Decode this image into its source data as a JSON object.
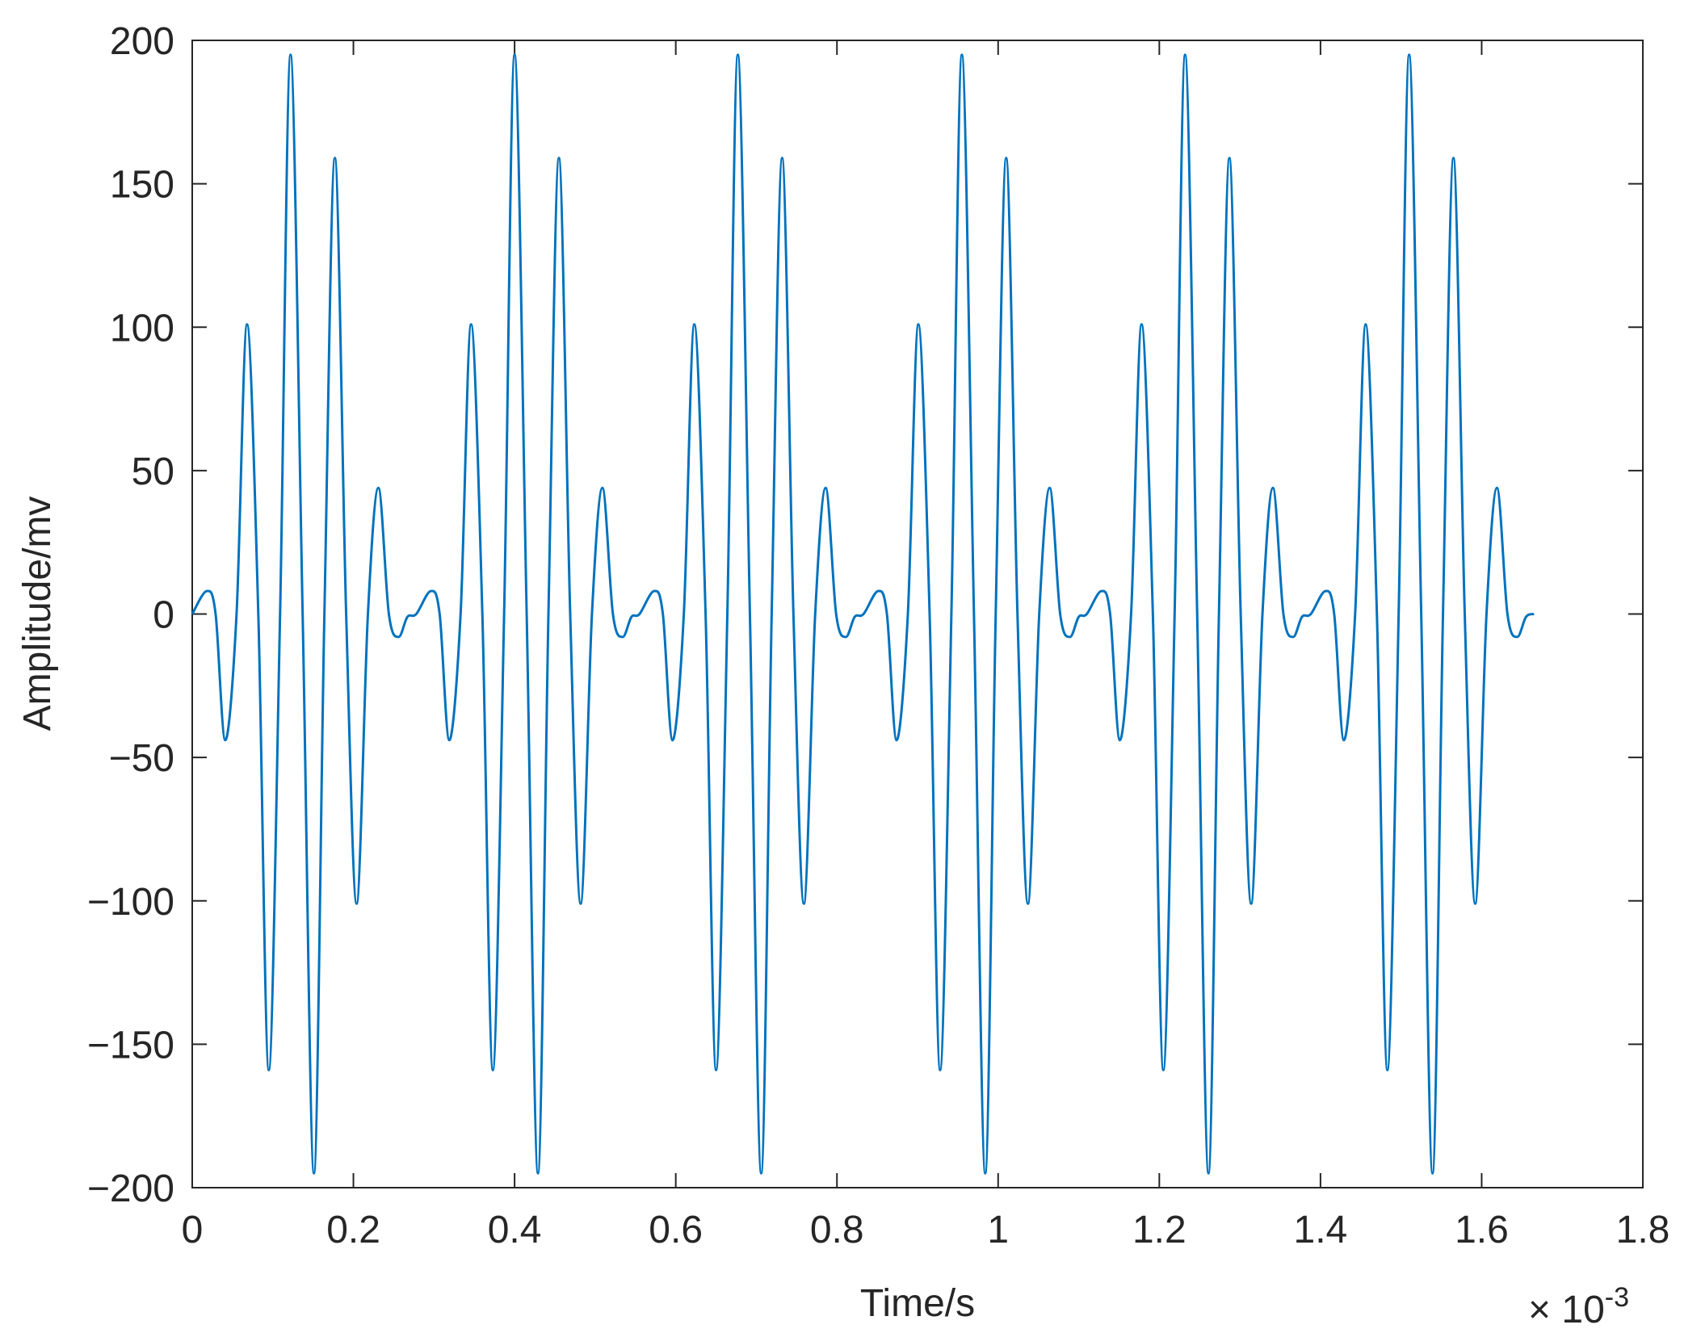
{
  "chart_data": {
    "type": "line",
    "x_label": "Time/s",
    "y_label": "Amplitude/mv",
    "x_multiplier": "× 10",
    "x_exponent": "-3",
    "xlim": [
      0,
      1.8
    ],
    "ylim": [
      -200,
      200
    ],
    "xticks": [
      0,
      0.2,
      0.4,
      0.6,
      0.8,
      1,
      1.2,
      1.4,
      1.6,
      1.8
    ],
    "yticks": [
      {
        "value": -200,
        "label": "−200"
      },
      {
        "value": -150,
        "label": "−150"
      },
      {
        "value": -100,
        "label": "−100"
      },
      {
        "value": -50,
        "label": "−50"
      },
      0,
      50,
      100,
      150,
      200
    ],
    "grid": false,
    "series": [
      {
        "color": "#0072bd",
        "x": [
          0,
          0.018,
          0.029,
          0.041,
          0.055,
          0.068,
          0.082,
          0.095,
          0.109,
          0.122,
          0.137,
          0.151,
          0.164,
          0.177,
          0.191,
          0.204,
          0.218,
          0.231,
          0.244,
          0.256,
          0.267,
          0.278,
          0.296,
          0.307,
          0.319,
          0.333,
          0.346,
          0.36,
          0.373,
          0.387,
          0.4,
          0.415,
          0.429,
          0.442,
          0.455,
          0.469,
          0.482,
          0.496,
          0.509,
          0.522,
          0.534,
          0.545,
          0.555,
          0.573,
          0.584,
          0.596,
          0.61,
          0.623,
          0.637,
          0.65,
          0.664,
          0.677,
          0.692,
          0.706,
          0.719,
          0.732,
          0.746,
          0.759,
          0.773,
          0.786,
          0.799,
          0.811,
          0.822,
          0.833,
          0.851,
          0.862,
          0.874,
          0.888,
          0.901,
          0.915,
          0.928,
          0.942,
          0.955,
          0.97,
          0.984,
          0.997,
          1.01,
          1.024,
          1.037,
          1.051,
          1.064,
          1.077,
          1.089,
          1.1,
          1.11,
          1.128,
          1.139,
          1.151,
          1.165,
          1.178,
          1.192,
          1.205,
          1.219,
          1.232,
          1.247,
          1.261,
          1.274,
          1.287,
          1.301,
          1.314,
          1.328,
          1.341,
          1.354,
          1.366,
          1.377,
          1.388,
          1.406,
          1.417,
          1.429,
          1.443,
          1.456,
          1.47,
          1.483,
          1.497,
          1.51,
          1.525,
          1.539,
          1.552,
          1.565,
          1.579,
          1.592,
          1.606,
          1.619,
          1.632,
          1.644,
          1.655,
          1.665
        ],
        "values": [
          0,
          8,
          0,
          -44,
          0,
          101,
          0,
          -159,
          0,
          195,
          0,
          -195,
          0,
          159,
          0,
          -101,
          0,
          44,
          0,
          -8,
          -1,
          0,
          8,
          0,
          -44,
          0,
          101,
          0,
          -159,
          0,
          195,
          0,
          -195,
          0,
          159,
          0,
          -101,
          0,
          44,
          0,
          -8,
          -1,
          0,
          8,
          0,
          -44,
          0,
          101,
          0,
          -159,
          0,
          195,
          0,
          -195,
          0,
          159,
          0,
          -101,
          0,
          44,
          0,
          -8,
          -1,
          0,
          8,
          0,
          -44,
          0,
          101,
          0,
          -159,
          0,
          195,
          0,
          -195,
          0,
          159,
          0,
          -101,
          0,
          44,
          0,
          -8,
          -1,
          0,
          8,
          0,
          -44,
          0,
          101,
          0,
          -159,
          0,
          195,
          0,
          -195,
          0,
          159,
          0,
          -101,
          0,
          44,
          0,
          -8,
          -1,
          0,
          8,
          0,
          -44,
          0,
          101,
          0,
          -159,
          0,
          195,
          0,
          -195,
          0,
          159,
          0,
          -101,
          0,
          44,
          0,
          -8,
          -1,
          0
        ]
      }
    ]
  }
}
